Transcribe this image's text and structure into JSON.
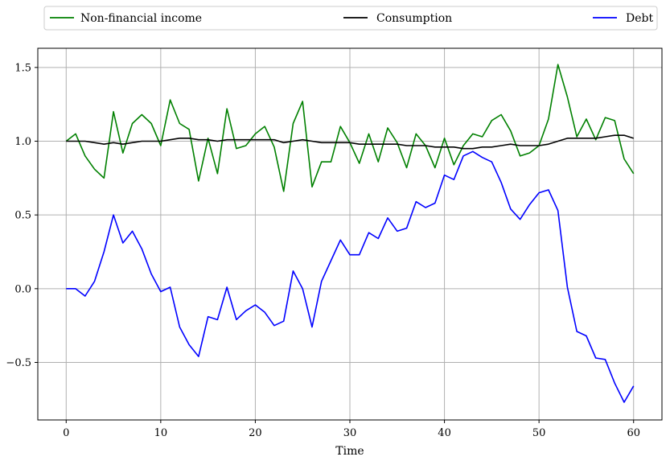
{
  "chart_data": {
    "type": "line",
    "xlabel": "Time",
    "ylabel": "",
    "xlim": [
      -3,
      63
    ],
    "ylim": [
      -0.89,
      1.63
    ],
    "xticks": [
      0,
      10,
      20,
      30,
      40,
      50,
      60
    ],
    "yticks": [
      -0.5,
      0.0,
      0.5,
      1.0,
      1.5
    ],
    "xtick_labels": [
      "0",
      "10",
      "20",
      "30",
      "40",
      "50",
      "60"
    ],
    "ytick_labels": [
      "−0.5",
      "0.0",
      "0.5",
      "1.0",
      "1.5"
    ],
    "grid": true,
    "legend_placement": "top, above plot, spanning width",
    "x": [
      0,
      1,
      2,
      3,
      4,
      5,
      6,
      7,
      8,
      9,
      10,
      11,
      12,
      13,
      14,
      15,
      16,
      17,
      18,
      19,
      20,
      21,
      22,
      23,
      24,
      25,
      26,
      27,
      28,
      29,
      30,
      31,
      32,
      33,
      34,
      35,
      36,
      37,
      38,
      39,
      40,
      41,
      42,
      43,
      44,
      45,
      46,
      47,
      48,
      49,
      50,
      51,
      52,
      53,
      54,
      55,
      56,
      57,
      58,
      59,
      60
    ],
    "series": [
      {
        "name": "Non-financial income",
        "color": "#008000",
        "values": [
          1.0,
          1.05,
          0.9,
          0.81,
          0.75,
          1.2,
          0.92,
          1.12,
          1.18,
          1.12,
          0.97,
          1.28,
          1.12,
          1.08,
          0.73,
          1.02,
          0.78,
          1.22,
          0.95,
          0.97,
          1.05,
          1.1,
          0.96,
          0.66,
          1.12,
          1.27,
          0.69,
          0.86,
          0.86,
          1.1,
          0.99,
          0.85,
          1.05,
          0.86,
          1.09,
          0.99,
          0.82,
          1.05,
          0.97,
          0.82,
          1.02,
          0.84,
          0.97,
          1.05,
          1.03,
          1.14,
          1.18,
          1.07,
          0.9,
          0.92,
          0.97,
          1.15,
          1.52,
          1.3,
          1.03,
          1.15,
          1.01,
          1.16,
          1.14,
          0.88,
          0.78
        ]
      },
      {
        "name": "Consumption",
        "color": "#000000",
        "values": [
          1.0,
          1.0,
          1.0,
          0.99,
          0.98,
          0.99,
          0.98,
          0.99,
          1.0,
          1.0,
          1.0,
          1.01,
          1.02,
          1.02,
          1.01,
          1.01,
          1.0,
          1.01,
          1.01,
          1.01,
          1.01,
          1.01,
          1.01,
          0.99,
          1.0,
          1.01,
          1.0,
          0.99,
          0.99,
          0.99,
          0.99,
          0.98,
          0.98,
          0.98,
          0.98,
          0.98,
          0.97,
          0.97,
          0.97,
          0.96,
          0.96,
          0.96,
          0.95,
          0.95,
          0.96,
          0.96,
          0.97,
          0.98,
          0.97,
          0.97,
          0.97,
          0.98,
          1.0,
          1.02,
          1.02,
          1.02,
          1.02,
          1.03,
          1.04,
          1.04,
          1.02
        ]
      },
      {
        "name": "Debt",
        "color": "#0000ff",
        "values": [
          0.0,
          0.0,
          -0.05,
          0.05,
          0.25,
          0.5,
          0.31,
          0.39,
          0.27,
          0.1,
          -0.02,
          0.01,
          -0.26,
          -0.38,
          -0.46,
          -0.19,
          -0.21,
          0.01,
          -0.21,
          -0.15,
          -0.11,
          -0.16,
          -0.25,
          -0.22,
          0.12,
          0.0,
          -0.26,
          0.05,
          0.19,
          0.33,
          0.23,
          0.23,
          0.38,
          0.34,
          0.48,
          0.39,
          0.41,
          0.59,
          0.55,
          0.58,
          0.77,
          0.74,
          0.9,
          0.93,
          0.89,
          0.86,
          0.72,
          0.54,
          0.47,
          0.57,
          0.65,
          0.67,
          0.53,
          0.01,
          -0.29,
          -0.32,
          -0.47,
          -0.48,
          -0.64,
          -0.77,
          -0.66
        ]
      }
    ]
  }
}
